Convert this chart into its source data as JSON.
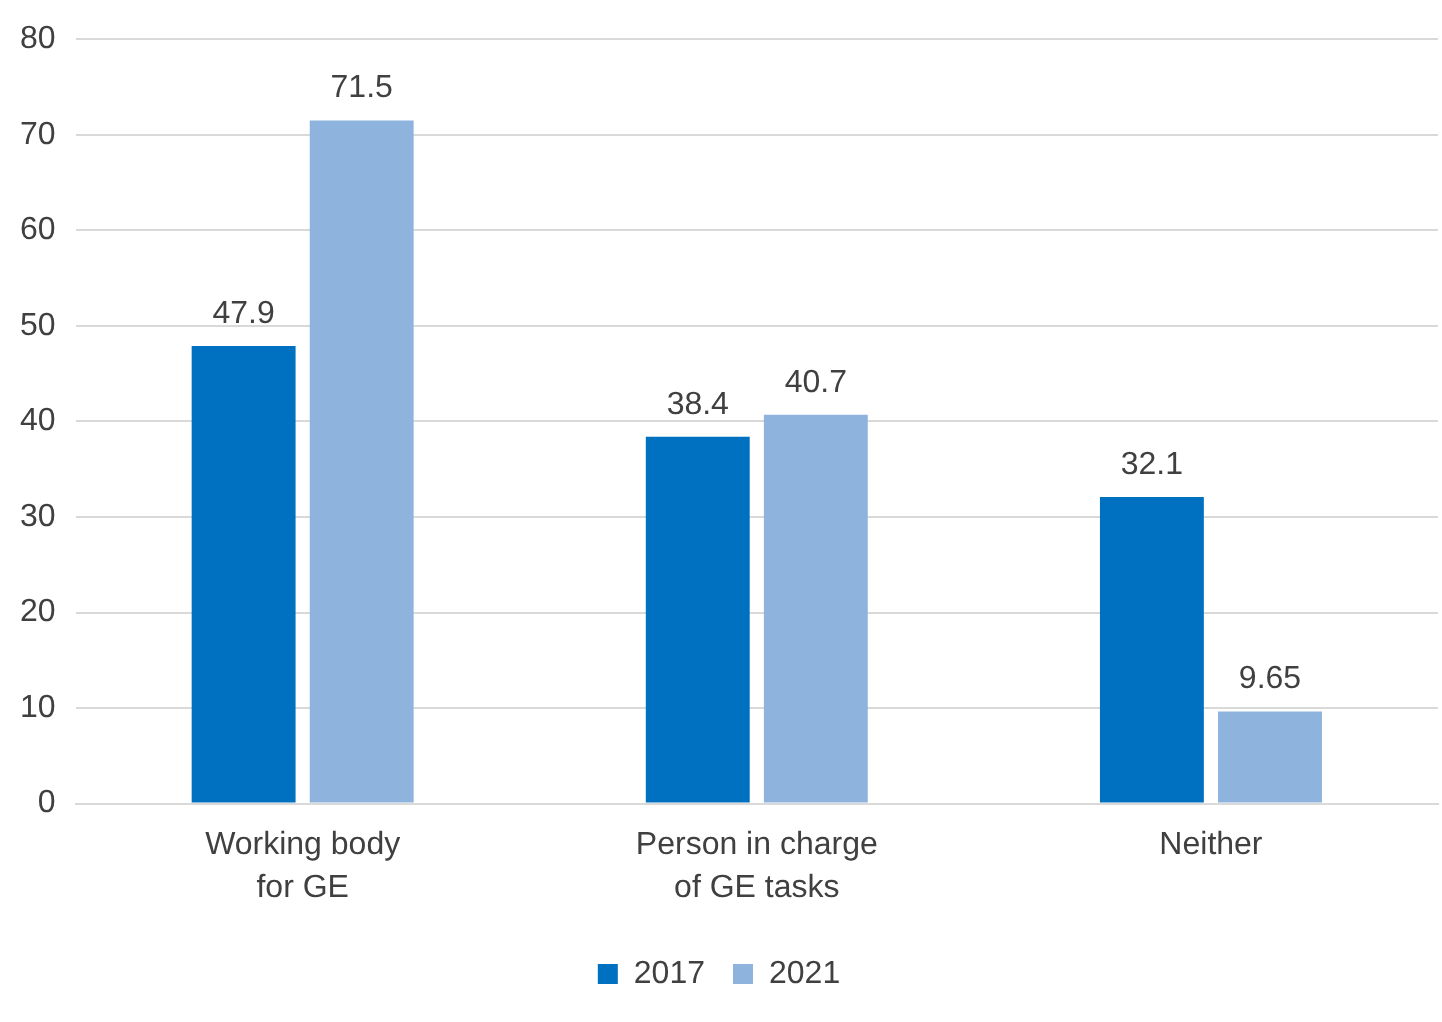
{
  "chart_data": {
    "type": "bar",
    "categories": [
      "Working body\nfor GE",
      "Person in charge\nof GE tasks",
      "Neither"
    ],
    "series": [
      {
        "name": "2017",
        "color": "#0070c0",
        "values": [
          47.9,
          38.4,
          32.1
        ]
      },
      {
        "name": "2021",
        "color": "#8eb4de",
        "values": [
          71.5,
          40.7,
          9.65
        ]
      }
    ],
    "ylim": [
      0,
      80
    ],
    "yticks": [
      0,
      10,
      20,
      30,
      40,
      50,
      60,
      70,
      80
    ],
    "grid": "y",
    "legend": "bottom",
    "data_labels": true
  }
}
